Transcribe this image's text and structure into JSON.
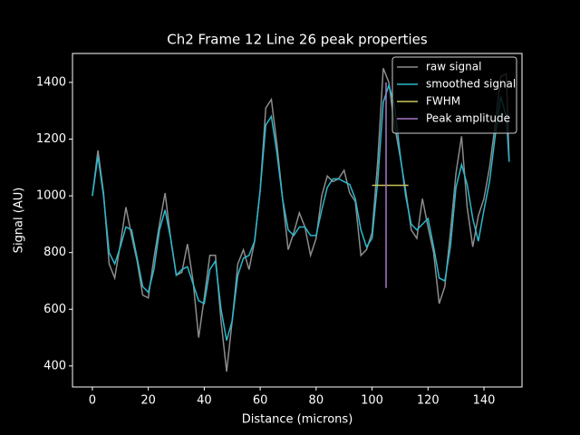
{
  "chart_data": {
    "type": "line",
    "title": "Ch2 Frame 12 Line 26 peak properties",
    "x_label": "Distance (microns)",
    "y_label": "Signal (AU)",
    "xlim": [
      -7.1,
      153.6
    ],
    "ylim": [
      326,
      1502
    ],
    "xticks": [
      0,
      20,
      40,
      60,
      80,
      100,
      120,
      140
    ],
    "yticks": [
      400,
      600,
      800,
      1000,
      1200,
      1400
    ],
    "legend": "upper right",
    "series": [
      {
        "name": "raw signal",
        "color": "#8c8c8c",
        "x": [
          0,
          2,
          4,
          6,
          8,
          10,
          12,
          14,
          16,
          18,
          20,
          22,
          24,
          26,
          28,
          30,
          32,
          34,
          36,
          38,
          40,
          42,
          44,
          46,
          48,
          50,
          52,
          54,
          56,
          58,
          60,
          62,
          64,
          66,
          68,
          70,
          72,
          74,
          76,
          78,
          80,
          82,
          84,
          86,
          88,
          90,
          92,
          94,
          96,
          98,
          100,
          102,
          104,
          106,
          108,
          110,
          112,
          114,
          116,
          118,
          120,
          122,
          124,
          126,
          128,
          130,
          132,
          134,
          136,
          138,
          140,
          142,
          144,
          146,
          148,
          149
        ],
        "values": [
          1000,
          1160,
          1010,
          760,
          710,
          830,
          960,
          860,
          770,
          650,
          640,
          780,
          900,
          1010,
          850,
          720,
          730,
          830,
          700,
          500,
          640,
          790,
          790,
          560,
          380,
          560,
          760,
          810,
          740,
          840,
          1020,
          1310,
          1340,
          1180,
          990,
          810,
          870,
          940,
          890,
          790,
          850,
          1000,
          1070,
          1050,
          1060,
          1090,
          1010,
          980,
          790,
          810,
          870,
          1120,
          1450,
          1400,
          1250,
          1140,
          1020,
          880,
          850,
          990,
          890,
          800,
          620,
          680,
          870,
          1080,
          1210,
          960,
          820,
          930,
          990,
          1100,
          1250,
          1420,
          1430,
          1120
        ]
      },
      {
        "name": "smoothed signal",
        "color": "#2bb8cc",
        "x": [
          0,
          2,
          4,
          6,
          8,
          10,
          12,
          14,
          16,
          18,
          20,
          22,
          24,
          26,
          28,
          30,
          32,
          34,
          36,
          38,
          40,
          42,
          44,
          46,
          48,
          50,
          52,
          54,
          56,
          58,
          60,
          62,
          64,
          66,
          68,
          70,
          72,
          74,
          76,
          78,
          80,
          82,
          84,
          86,
          88,
          90,
          92,
          94,
          96,
          98,
          100,
          102,
          104,
          106,
          108,
          110,
          112,
          114,
          116,
          118,
          120,
          122,
          124,
          126,
          128,
          130,
          132,
          134,
          136,
          138,
          140,
          142,
          144,
          146,
          148,
          149
        ],
        "values": [
          1000,
          1140,
          1000,
          800,
          760,
          820,
          890,
          880,
          780,
          680,
          660,
          740,
          880,
          950,
          850,
          720,
          740,
          750,
          690,
          630,
          620,
          740,
          770,
          600,
          490,
          560,
          720,
          780,
          790,
          840,
          1020,
          1250,
          1280,
          1150,
          990,
          880,
          860,
          890,
          890,
          860,
          860,
          950,
          1030,
          1060,
          1060,
          1050,
          1040,
          990,
          880,
          820,
          850,
          1050,
          1330,
          1390,
          1320,
          1150,
          1000,
          900,
          880,
          900,
          920,
          820,
          710,
          700,
          820,
          1030,
          1110,
          1040,
          920,
          840,
          950,
          1050,
          1210,
          1350,
          1280,
          1120
        ]
      },
      {
        "name": "FWHM",
        "color": "#c8c45a",
        "x": [
          100,
          113
        ],
        "values": [
          1037,
          1037
        ]
      },
      {
        "name": "Peak amplitude",
        "color": "#a678c8",
        "x": [
          105,
          105
        ],
        "values": [
          675,
          1400
        ]
      }
    ]
  }
}
